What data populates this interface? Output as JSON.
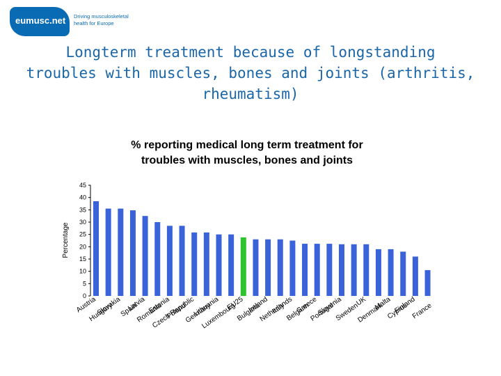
{
  "logo": {
    "name": "eumusc.net",
    "tagline_line1": "Driving musculoskeletal",
    "tagline_line2": "health for Europe"
  },
  "slide": {
    "title_line1": "Longterm treatment because of longstanding",
    "title_line2": "troubles with muscles, bones and joints (arthritis,",
    "title_line3": "rheumatism)"
  },
  "colors": {
    "bar": "#3b63d9",
    "highlight": "#2ec42e",
    "axis": "#000000"
  },
  "chart_data": {
    "type": "bar",
    "title": "% reporting medical long term treatment for troubles with muscles, bones and joints",
    "title_lines": [
      "% reporting medical long term treatment for",
      "troubles with muscles, bones and joints"
    ],
    "ylabel": "Percentage",
    "xlabel": "",
    "ylim": [
      0,
      45
    ],
    "yticks": [
      0,
      5,
      10,
      15,
      20,
      25,
      30,
      35,
      40,
      45
    ],
    "grid": false,
    "highlight_category": "EU25",
    "categories": [
      "Austria",
      "Hungary",
      "Slovakia",
      "Spain",
      "Latvia",
      "Romania",
      "Estonia",
      "Poland",
      "Czech Republic",
      "Germany",
      "Lithuania",
      "Luxembourg",
      "EU25",
      "Bulgaria",
      "Ireland",
      "Italy",
      "Netherlands",
      "Belgium",
      "Greece",
      "Portugal",
      "Slovenia",
      "Sweden",
      "UK",
      "Denmark",
      "Malta",
      "Cyprus",
      "Finland",
      "France"
    ],
    "values": [
      38.5,
      35.5,
      35.5,
      34.8,
      32.5,
      30,
      28.5,
      28.5,
      25.8,
      25.8,
      25,
      25,
      23.8,
      23,
      23,
      23,
      22.5,
      21.2,
      21.2,
      21.2,
      21,
      21,
      21,
      19,
      19,
      18,
      16,
      10.5
    ]
  }
}
